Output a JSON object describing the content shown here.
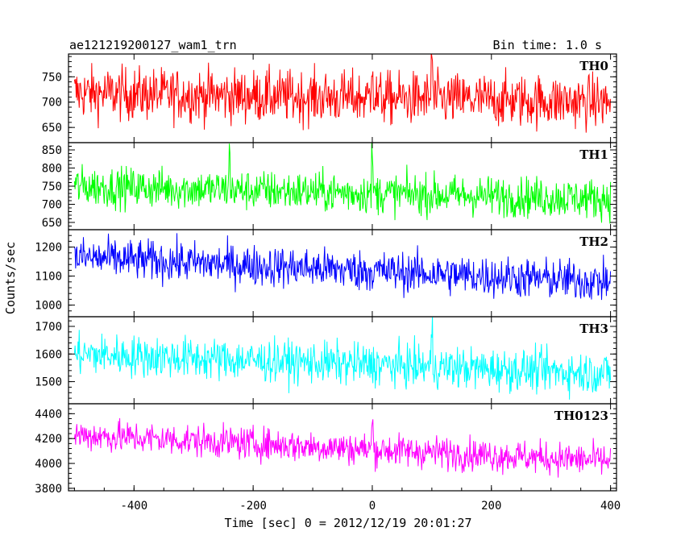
{
  "header": {
    "title": "ae121219200127_wam1_trn",
    "bin_time": "Bin time: 1.0 s"
  },
  "chart_data": {
    "type": "line",
    "xlabel": "Time [sec] 0 = 2012/12/19 20:01:27",
    "ylabel": "Counts/sec",
    "xlim": [
      -510,
      410
    ],
    "x_ticks": [
      -400,
      -200,
      0,
      200,
      400
    ],
    "x_start": -500,
    "x_end": 400,
    "x_step": 1.0,
    "panels": [
      {
        "name": "TH0",
        "color": "#ff0000",
        "ylim": [
          620,
          795
        ],
        "y_ticks": [
          650,
          700,
          750
        ],
        "trend_start": 718,
        "trend_end": 700,
        "noise_amplitude": 52,
        "spikes": [
          0,
          100
        ]
      },
      {
        "name": "TH1",
        "color": "#00ff00",
        "ylim": [
          630,
          870
        ],
        "y_ticks": [
          650,
          700,
          750,
          800,
          850
        ],
        "trend_start": 750,
        "trend_end": 715,
        "noise_amplitude": 55,
        "spikes": [
          -240,
          0
        ]
      },
      {
        "name": "TH2",
        "color": "#0000ff",
        "ylim": [
          960,
          1260
        ],
        "y_ticks": [
          1000,
          1100,
          1200
        ],
        "trend_start": 1165,
        "trend_end": 1080,
        "noise_amplitude": 70,
        "spikes": []
      },
      {
        "name": "TH3",
        "color": "#00ffff",
        "ylim": [
          1420,
          1735
        ],
        "y_ticks": [
          1500,
          1600,
          1700
        ],
        "trend_start": 1600,
        "trend_end": 1530,
        "noise_amplitude": 75,
        "spikes": [
          100
        ]
      },
      {
        "name": "TH0123",
        "color": "#ff00ff",
        "ylim": [
          3780,
          4480
        ],
        "y_ticks": [
          3800,
          4000,
          4200,
          4400
        ],
        "trend_start": 4230,
        "trend_end": 4020,
        "noise_amplitude": 130,
        "spikes": [
          0
        ]
      }
    ]
  }
}
